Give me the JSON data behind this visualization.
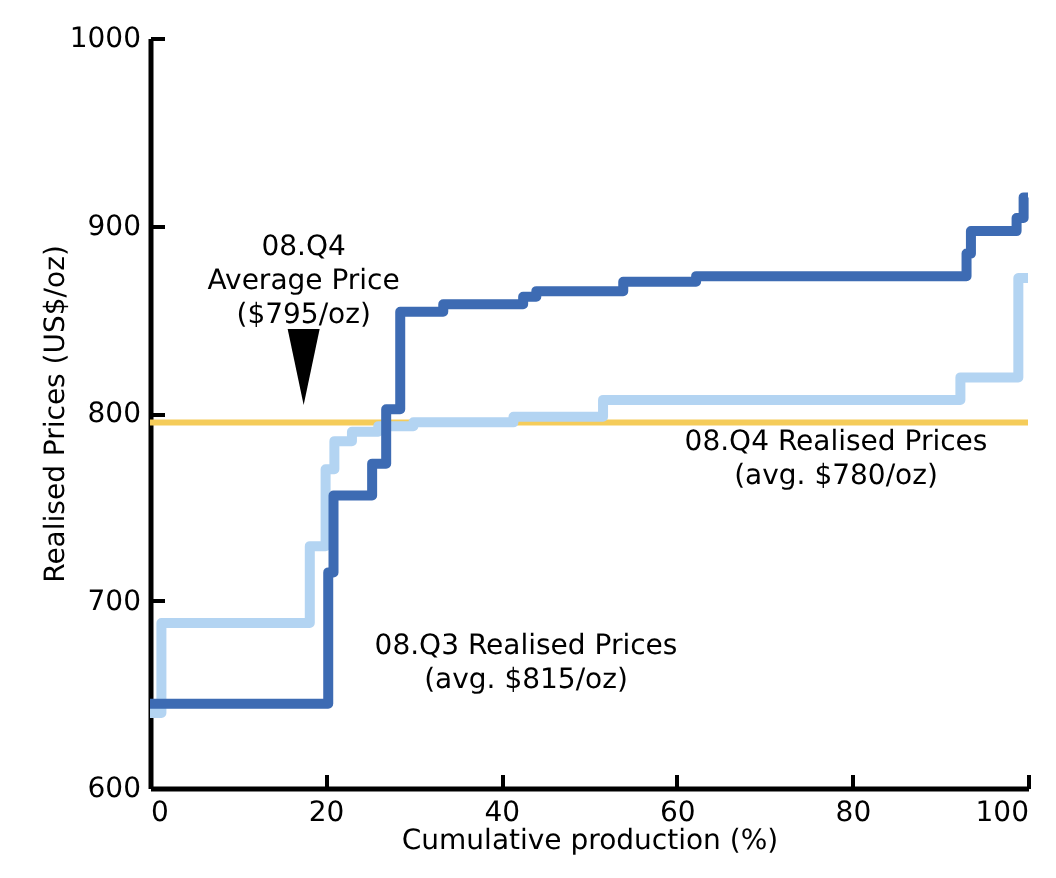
{
  "chart_data": {
    "type": "step",
    "xlabel": "Cumulative production (%)",
    "ylabel": "Realised Prices (US$/oz)",
    "xlim": [
      0,
      100
    ],
    "xticks": [
      0,
      20,
      40,
      60,
      80,
      100
    ],
    "ylim": [
      600,
      1000
    ],
    "yticks": [
      600,
      700,
      800,
      900,
      1000
    ],
    "grid": false,
    "series": [
      {
        "color": "#b3d4f2",
        "x": [
          0,
          1.3,
          18.2,
          20,
          21,
          23,
          26,
          30,
          41.4,
          51.6,
          92.3,
          98.9,
          100
        ],
        "values": [
          640,
          688,
          729,
          770,
          785,
          790,
          793,
          795,
          798,
          807,
          819,
          872,
          872
        ]
      },
      {
        "color": "#3d6bb3",
        "x": [
          0,
          20.3,
          20.9,
          25.3,
          26.9,
          28.5,
          33.4,
          42.5,
          44,
          53.9,
          62.2,
          93,
          93.5,
          98.7,
          99.5,
          100
        ],
        "values": [
          645,
          715,
          756,
          773,
          802,
          854,
          858,
          862,
          865,
          870,
          873,
          885,
          897,
          904,
          915,
          915
        ]
      }
    ],
    "ref_lines": [
      {
        "axis": "y",
        "value": 795,
        "color": "#f5cc5a"
      }
    ],
    "annotations": [
      {
        "text": "08.Q4\nAverage Price\n($795/oz)",
        "x": 17.5,
        "y": 800
      },
      "08.Q3 Realised Prices\n(avg. $815/oz)",
      "08.Q4 Realised Prices\n(avg. $780/oz)"
    ]
  }
}
